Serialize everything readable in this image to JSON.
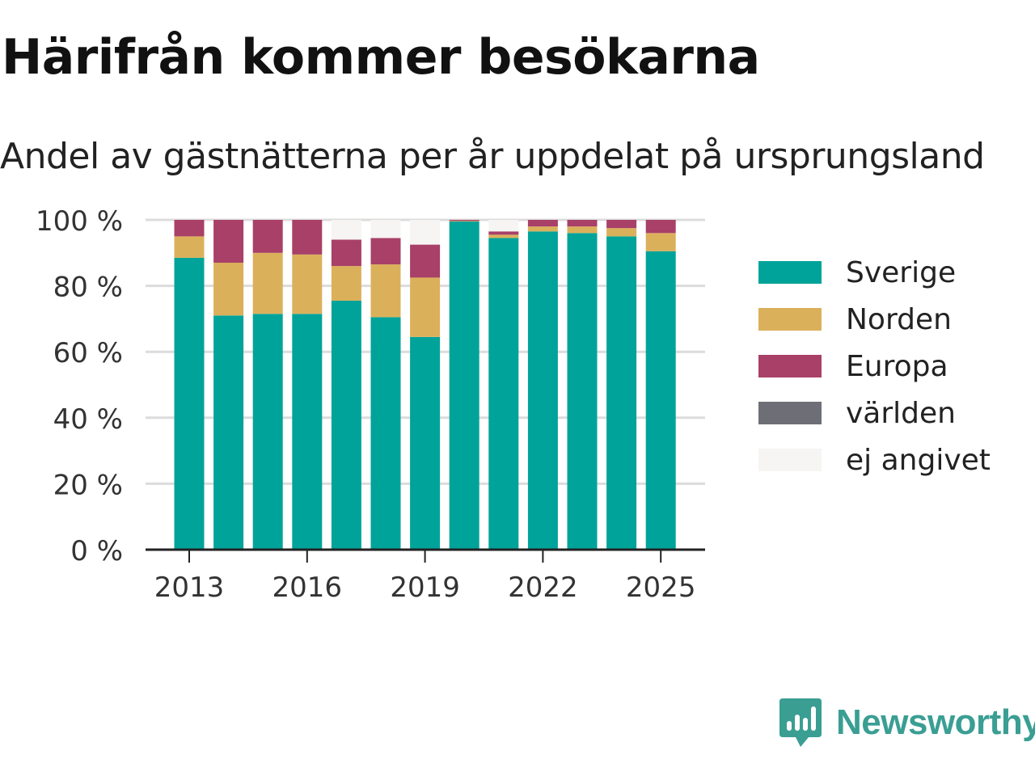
{
  "title": "Härifrån kommer besökarna",
  "subtitle": "Andel av gästnätterna per år uppdelat på ursprungsland",
  "brand": {
    "name": "Newsworthy",
    "color": "#3a9e93",
    "icon": "newsworthy-logo-icon"
  },
  "chart_data": {
    "type": "bar",
    "stacked": true,
    "x": [
      2013,
      2014,
      2015,
      2016,
      2017,
      2018,
      2019,
      2020,
      2021,
      2022,
      2023,
      2024,
      2025
    ],
    "x_tick_labels": [
      "2013",
      "2016",
      "2019",
      "2022",
      "2025"
    ],
    "y_ticks": [
      "0 %",
      "20 %",
      "40 %",
      "60 %",
      "80 %",
      "100 %"
    ],
    "ylim": [
      0,
      100
    ],
    "grid": true,
    "legend_position": "right",
    "series": [
      {
        "name": "Sverige",
        "color": "#00a39a",
        "values": [
          88.5,
          71,
          71.5,
          71.5,
          75.5,
          70.5,
          64.5,
          99.5,
          94.5,
          96.5,
          96,
          95,
          90.5
        ]
      },
      {
        "name": "Norden",
        "color": "#dbb05b",
        "values": [
          6.5,
          16,
          18.5,
          18,
          10.5,
          16,
          18,
          0.2,
          1,
          1.5,
          2,
          2.5,
          5.5
        ]
      },
      {
        "name": "Europa",
        "color": "#a84068",
        "values": [
          5,
          13,
          10,
          10.5,
          8,
          8,
          10,
          0.3,
          1,
          2,
          2,
          2.5,
          4
        ]
      },
      {
        "name": "världen",
        "color": "#6e6e76",
        "values": [
          0,
          0,
          0,
          0,
          0,
          0,
          0,
          0,
          0,
          0,
          0,
          0,
          0
        ]
      },
      {
        "name": "ej angivet",
        "color": "#f6f5f3",
        "values": [
          0,
          0,
          0,
          0,
          6,
          5.5,
          7.5,
          0,
          3.5,
          0,
          0,
          0,
          0
        ]
      }
    ]
  }
}
